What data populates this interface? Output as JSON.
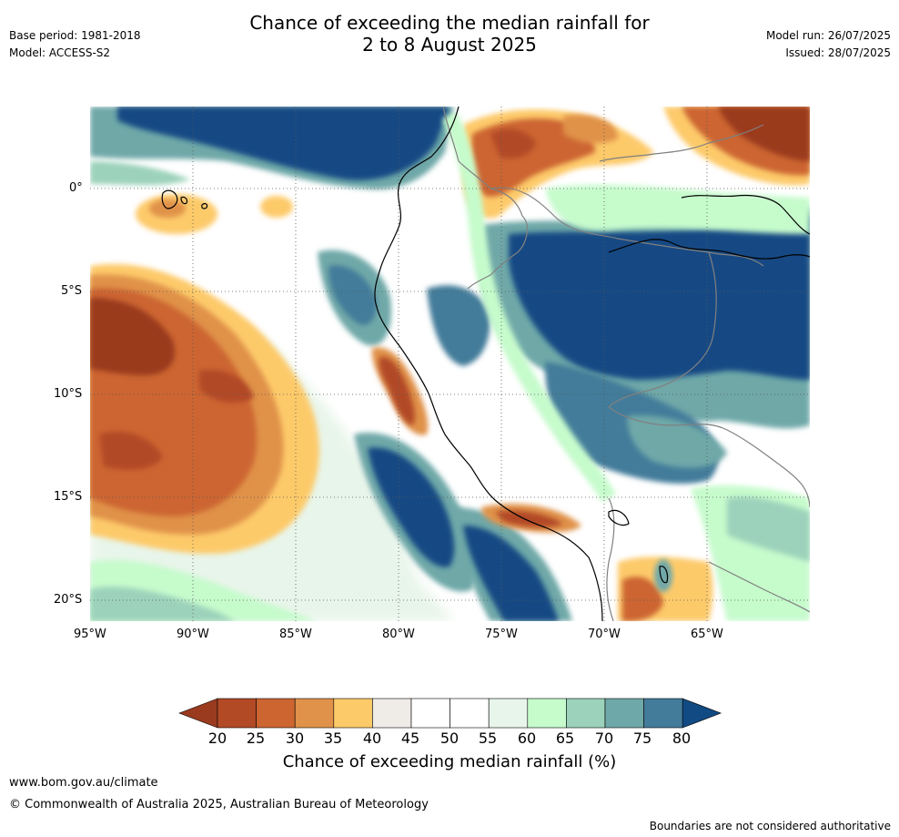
{
  "header": {
    "title_line1": "Chance of exceeding the median rainfall for",
    "title_line2": "2 to 8 August 2025",
    "base_period": "Base period: 1981-2018",
    "model": "Model: ACCESS-S2",
    "model_run": "Model run: 26/07/2025",
    "issued": "Issued: 28/07/2025"
  },
  "map": {
    "lat_labels": [
      "0°",
      "5°S",
      "10°S",
      "15°S",
      "20°S"
    ],
    "lon_labels": [
      "95°W",
      "90°W",
      "85°W",
      "80°W",
      "75°W",
      "70°W",
      "65°W"
    ]
  },
  "colorbar": {
    "ticks": [
      "20",
      "25",
      "30",
      "35",
      "40",
      "45",
      "50",
      "55",
      "60",
      "65",
      "70",
      "75",
      "80"
    ],
    "colors": [
      "#9a3a1f",
      "#b24a26",
      "#cc6530",
      "#e0924a",
      "#fdca6a",
      "#efebe7",
      "#ffffff",
      "#ffffff",
      "#e8f5ea",
      "#c6fbcc",
      "#9cd2bb",
      "#6fa8a8",
      "#437b9a",
      "#124a84"
    ],
    "label": "Chance of exceeding median rainfall (%)"
  },
  "footer": {
    "url": "www.bom.gov.au/climate",
    "copyright": "© Commonwealth of Australia 2025, Australian Bureau of Meteorology",
    "disclaimer": "Boundaries are not considered authoritative"
  }
}
